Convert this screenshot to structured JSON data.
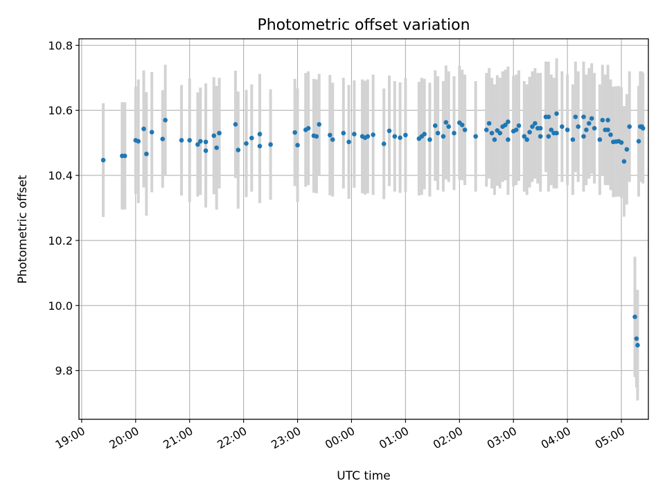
{
  "chart_data": {
    "type": "scatter",
    "title": "Photometric offset variation",
    "xlabel": "UTC time",
    "ylabel": "Photometric offset",
    "x_unit": "hours since 19:00 UTC",
    "xlim": [
      -0.05,
      10.5
    ],
    "ylim": [
      9.65,
      10.82
    ],
    "yticks": [
      9.8,
      10.0,
      10.2,
      10.4,
      10.6,
      10.8
    ],
    "ytick_labels": [
      "9.8",
      "10.0",
      "10.2",
      "10.4",
      "10.6",
      "10.8"
    ],
    "xticks": [
      0,
      1,
      2,
      3,
      4,
      5,
      6,
      7,
      8,
      9,
      10
    ],
    "xtick_labels": [
      "19:00",
      "20:00",
      "21:00",
      "22:00",
      "23:00",
      "00:00",
      "01:00",
      "02:00",
      "03:00",
      "04:00",
      "05:00"
    ],
    "grid": true,
    "marker_color": "#1f77b4",
    "errorbar_color": "#d3d3d3",
    "series": [
      {
        "name": "offset",
        "x": [
          0.4,
          0.75,
          0.8,
          1.0,
          1.05,
          1.15,
          1.2,
          1.3,
          1.5,
          1.55,
          1.85,
          2.0,
          2.15,
          2.2,
          2.3,
          2.3,
          2.45,
          2.5,
          2.55,
          2.85,
          2.9,
          3.05,
          3.15,
          3.3,
          3.3,
          3.5,
          3.95,
          4.0,
          4.15,
          4.2,
          4.3,
          4.35,
          4.4,
          4.6,
          4.65,
          4.85,
          4.95,
          5.05,
          5.2,
          5.25,
          5.3,
          5.4,
          5.6,
          5.7,
          5.8,
          5.9,
          6.0,
          6.25,
          6.3,
          6.35,
          6.45,
          6.55,
          6.6,
          6.7,
          6.75,
          6.8,
          6.9,
          7.0,
          7.05,
          7.1,
          7.3,
          7.5,
          7.55,
          7.6,
          7.65,
          7.7,
          7.75,
          7.8,
          7.85,
          7.9,
          7.9,
          8.0,
          8.05,
          8.1,
          8.2,
          8.25,
          8.3,
          8.35,
          8.4,
          8.45,
          8.5,
          8.5,
          8.6,
          8.65,
          8.65,
          8.7,
          8.75,
          8.8,
          8.8,
          8.9,
          9.0,
          9.1,
          9.15,
          9.2,
          9.3,
          9.3,
          9.35,
          9.4,
          9.45,
          9.5,
          9.6,
          9.65,
          9.7,
          9.75,
          9.75,
          9.8,
          9.85,
          9.9,
          9.95,
          10.0,
          10.05,
          10.1,
          10.15,
          10.25,
          10.28,
          10.3,
          10.32,
          10.35,
          10.38,
          10.4
        ],
        "y": [
          10.447,
          10.46,
          10.46,
          10.508,
          10.505,
          10.543,
          10.466,
          10.533,
          10.512,
          10.57,
          10.508,
          10.508,
          10.495,
          10.505,
          10.503,
          10.476,
          10.522,
          10.485,
          10.53,
          10.557,
          10.478,
          10.498,
          10.515,
          10.527,
          10.49,
          10.495,
          10.532,
          10.493,
          10.54,
          10.545,
          10.522,
          10.52,
          10.557,
          10.524,
          10.51,
          10.53,
          10.503,
          10.527,
          10.52,
          10.516,
          10.52,
          10.525,
          10.497,
          10.537,
          10.52,
          10.516,
          10.524,
          10.513,
          10.52,
          10.527,
          10.51,
          10.553,
          10.53,
          10.52,
          10.563,
          10.55,
          10.53,
          10.562,
          10.555,
          10.54,
          10.52,
          10.54,
          10.56,
          10.53,
          10.51,
          10.538,
          10.53,
          10.55,
          10.555,
          10.51,
          10.565,
          10.536,
          10.54,
          10.553,
          10.52,
          10.51,
          10.533,
          10.55,
          10.56,
          10.545,
          10.545,
          10.52,
          10.58,
          10.52,
          10.58,
          10.54,
          10.53,
          10.53,
          10.59,
          10.55,
          10.54,
          10.51,
          10.58,
          10.55,
          10.58,
          10.52,
          10.54,
          10.56,
          10.575,
          10.545,
          10.51,
          10.57,
          10.54,
          10.54,
          10.57,
          10.525,
          10.503,
          10.504,
          10.505,
          10.501,
          10.443,
          10.48,
          10.55,
          9.965,
          9.898,
          9.878,
          10.505,
          10.55,
          10.55,
          10.545
        ],
        "yerr": [
          0.175,
          0.165,
          0.165,
          0.165,
          0.19,
          0.18,
          0.19,
          0.185,
          0.15,
          0.17,
          0.17,
          0.19,
          0.16,
          0.165,
          0.18,
          0.175,
          0.18,
          0.19,
          0.17,
          0.165,
          0.18,
          0.165,
          0.165,
          0.185,
          0.175,
          0.17,
          0.165,
          0.175,
          0.175,
          0.175,
          0.175,
          0.175,
          0.155,
          0.185,
          0.175,
          0.17,
          0.175,
          0.165,
          0.175,
          0.175,
          0.175,
          0.185,
          0.17,
          0.17,
          0.17,
          0.17,
          0.175,
          0.175,
          0.18,
          0.17,
          0.175,
          0.17,
          0.175,
          0.17,
          0.175,
          0.17,
          0.175,
          0.175,
          0.17,
          0.17,
          0.17,
          0.175,
          0.17,
          0.17,
          0.17,
          0.17,
          0.17,
          0.17,
          0.17,
          0.17,
          0.17,
          0.17,
          0.17,
          0.17,
          0.17,
          0.17,
          0.17,
          0.17,
          0.17,
          0.17,
          0.17,
          0.17,
          0.17,
          0.17,
          0.17,
          0.17,
          0.17,
          0.17,
          0.17,
          0.17,
          0.17,
          0.17,
          0.17,
          0.17,
          0.17,
          0.17,
          0.17,
          0.17,
          0.17,
          0.17,
          0.17,
          0.17,
          0.17,
          0.17,
          0.17,
          0.17,
          0.17,
          0.17,
          0.17,
          0.17,
          0.17,
          0.17,
          0.17,
          0.185,
          0.15,
          0.17,
          0.17,
          0.17,
          0.17,
          0.17
        ]
      }
    ]
  }
}
